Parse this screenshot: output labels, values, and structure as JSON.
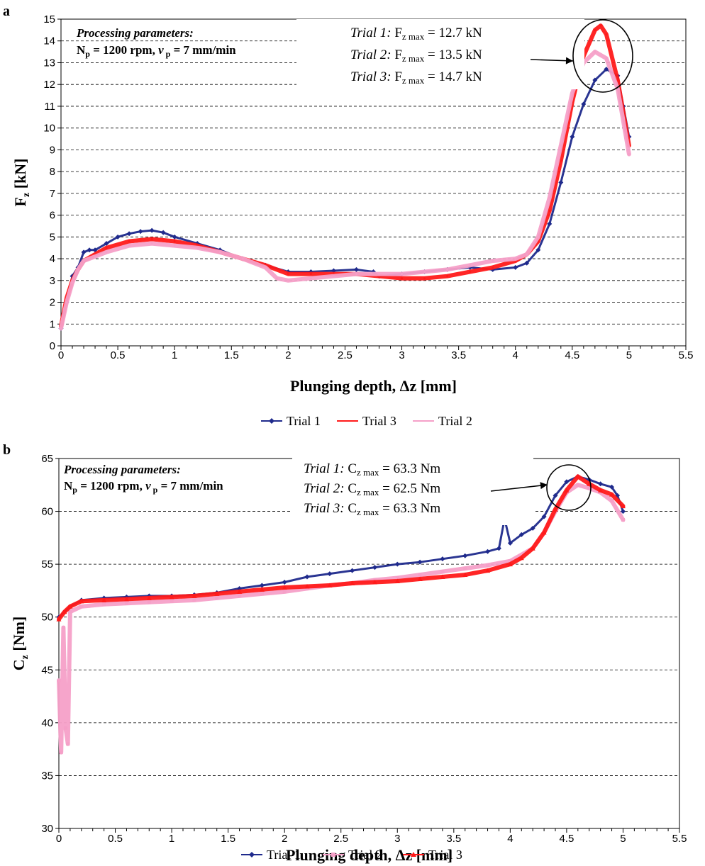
{
  "chart_data": [
    {
      "type": "line",
      "panel": "a",
      "xlabel": "Plunging depth, Δz [mm]",
      "ylabel": {
        "main": "F",
        "sub": "z",
        "unit": " [kN]"
      },
      "xlim": [
        0,
        5.5
      ],
      "ylim": [
        0,
        15
      ],
      "xticks": [
        "0",
        "0.5",
        "1",
        "1.5",
        "2",
        "2.5",
        "3",
        "3.5",
        "4",
        "4.5",
        "5",
        "5.5"
      ],
      "yticks": [
        "0",
        "1",
        "2",
        "3",
        "4",
        "5",
        "6",
        "7",
        "8",
        "9",
        "10",
        "11",
        "12",
        "13",
        "14",
        "15"
      ],
      "grid": "horizontal dashed",
      "params": {
        "heading": "Processing parameters:",
        "line2_a": "N",
        "line2_a_sub": "p",
        "line2_b": " = 1200 rpm, ",
        "line2_c": "v",
        "line2_c_sub": " p",
        "line2_d": " = 7 mm/min"
      },
      "annotations": [
        {
          "trial": "Trial 1:",
          "sym": "F",
          "sub": "z max",
          "value": " = 12.7 kN"
        },
        {
          "trial": "Trial 2:",
          "sym": "F",
          "sub": "z max",
          "value": " = 13.5 kN"
        },
        {
          "trial": "Trial 3:",
          "sym": "F",
          "sub": "z max",
          "value": " = 14.7 kN"
        }
      ],
      "legend_placement": "bottom",
      "legend": [
        "Trial 1",
        "Trial 3",
        "Trial 2"
      ],
      "series": [
        {
          "name": "Trial 1",
          "color": "#1f2a8c",
          "marker": "diamond",
          "x": [
            0,
            0.05,
            0.1,
            0.15,
            0.2,
            0.25,
            0.3,
            0.4,
            0.5,
            0.6,
            0.7,
            0.8,
            0.9,
            1.0,
            1.2,
            1.4,
            1.6,
            1.8,
            2.0,
            2.2,
            2.4,
            2.6,
            2.75,
            2.8,
            3.0,
            3.2,
            3.4,
            3.6,
            3.8,
            4.0,
            4.1,
            4.2,
            4.3,
            4.4,
            4.5,
            4.6,
            4.7,
            4.8,
            4.9,
            4.95,
            5.0
          ],
          "y": [
            0.8,
            2.0,
            3.2,
            3.6,
            4.3,
            4.4,
            4.4,
            4.7,
            5.0,
            5.15,
            5.25,
            5.3,
            5.2,
            5.0,
            4.7,
            4.4,
            4.0,
            3.7,
            3.4,
            3.4,
            3.45,
            3.5,
            3.4,
            3.2,
            3.3,
            3.4,
            3.5,
            3.6,
            3.5,
            3.6,
            3.8,
            4.4,
            5.6,
            7.5,
            9.6,
            11.1,
            12.2,
            12.7,
            12.4,
            11.0,
            9.6
          ]
        },
        {
          "name": "Trial 3",
          "color": "#ff1a1a",
          "marker": "none",
          "x": [
            0,
            0.05,
            0.1,
            0.15,
            0.2,
            0.3,
            0.4,
            0.6,
            0.8,
            1.0,
            1.2,
            1.4,
            1.6,
            1.8,
            2.0,
            2.2,
            2.4,
            2.6,
            2.8,
            3.0,
            3.2,
            3.4,
            3.6,
            3.8,
            4.0,
            4.1,
            4.2,
            4.3,
            4.4,
            4.5,
            4.6,
            4.7,
            4.75,
            4.8,
            4.9,
            5.0
          ],
          "y": [
            0.9,
            2.2,
            3.0,
            3.5,
            3.9,
            4.2,
            4.5,
            4.8,
            4.9,
            4.8,
            4.6,
            4.3,
            4.0,
            3.7,
            3.3,
            3.3,
            3.3,
            3.3,
            3.2,
            3.1,
            3.1,
            3.2,
            3.4,
            3.6,
            3.9,
            4.2,
            4.8,
            6.2,
            8.5,
            11.2,
            13.3,
            14.5,
            14.7,
            14.3,
            12.2,
            9.2
          ]
        },
        {
          "name": "Trial 2",
          "color": "#f5a0c8",
          "marker": "none",
          "x": [
            0,
            0.05,
            0.1,
            0.15,
            0.2,
            0.3,
            0.4,
            0.6,
            0.8,
            1.0,
            1.2,
            1.4,
            1.6,
            1.8,
            1.9,
            2.0,
            2.2,
            2.4,
            2.6,
            2.8,
            3.0,
            3.2,
            3.4,
            3.6,
            3.8,
            4.0,
            4.1,
            4.2,
            4.3,
            4.4,
            4.5,
            4.6,
            4.7,
            4.8,
            4.9,
            5.0
          ],
          "y": [
            0.8,
            2.0,
            2.9,
            3.5,
            3.9,
            4.1,
            4.3,
            4.6,
            4.7,
            4.6,
            4.5,
            4.3,
            4.0,
            3.6,
            3.1,
            3.0,
            3.1,
            3.2,
            3.3,
            3.3,
            3.3,
            3.4,
            3.5,
            3.7,
            3.9,
            4.0,
            4.2,
            5.0,
            6.8,
            9.2,
            11.6,
            13.0,
            13.5,
            13.2,
            11.8,
            8.8
          ]
        }
      ]
    },
    {
      "type": "line",
      "panel": "b",
      "xlabel": "Plunging depth, Δz [mm]",
      "ylabel": {
        "main": "C",
        "sub": "z",
        "unit": " [Nm]"
      },
      "xlim": [
        0,
        5.5
      ],
      "ylim": [
        30,
        65
      ],
      "xticks": [
        "0",
        "0.5",
        "1",
        "1.5",
        "2",
        "2.5",
        "3",
        "3.5",
        "4",
        "4.5",
        "5",
        "5.5"
      ],
      "yticks": [
        "30",
        "35",
        "40",
        "45",
        "50",
        "55",
        "60",
        "65"
      ],
      "grid": "horizontal dashed",
      "params": {
        "heading": "Processing parameters:",
        "line2_a": "N",
        "line2_a_sub": "p",
        "line2_b": " = 1200 rpm, ",
        "line2_c": "v",
        "line2_c_sub": " p",
        "line2_d": " = 7 mm/min"
      },
      "annotations": [
        {
          "trial": "Trial 1:",
          "sym": "C",
          "sub": "z max",
          "value": " = 63.3 Nm"
        },
        {
          "trial": "Trial 2:",
          "sym": "C",
          "sub": "z max",
          "value": " = 62.5 Nm"
        },
        {
          "trial": "Trial 3:",
          "sym": "C",
          "sub": "z max",
          "value": " = 63.3 Nm"
        }
      ],
      "legend_placement": "bottom",
      "legend": [
        "Trial 1",
        "Trial 2",
        "Trial 3"
      ],
      "series": [
        {
          "name": "Trial 1",
          "color": "#1f2a8c",
          "marker": "diamond",
          "x": [
            0,
            0.05,
            0.1,
            0.2,
            0.4,
            0.6,
            0.8,
            1.0,
            1.2,
            1.4,
            1.6,
            1.8,
            2.0,
            2.2,
            2.4,
            2.6,
            2.8,
            3.0,
            3.2,
            3.4,
            3.6,
            3.8,
            3.9,
            3.95,
            4.0,
            4.1,
            4.2,
            4.3,
            4.4,
            4.5,
            4.6,
            4.7,
            4.8,
            4.9,
            4.95,
            5.0
          ],
          "y": [
            50.0,
            50.5,
            51.0,
            51.6,
            51.8,
            51.9,
            52.0,
            52.0,
            52.1,
            52.3,
            52.7,
            53.0,
            53.3,
            53.8,
            54.1,
            54.4,
            54.7,
            55.0,
            55.2,
            55.5,
            55.8,
            56.2,
            56.5,
            59.3,
            57.0,
            57.8,
            58.4,
            59.5,
            61.5,
            62.8,
            63.3,
            63.0,
            62.6,
            62.3,
            61.5,
            60.0
          ]
        },
        {
          "name": "Trial 2",
          "color": "#f5a0c8",
          "marker": "square",
          "x": [
            0,
            0.02,
            0.04,
            0.06,
            0.08,
            0.1,
            0.2,
            0.4,
            0.6,
            0.8,
            1.0,
            1.2,
            1.4,
            1.6,
            1.8,
            2.0,
            2.2,
            2.4,
            2.6,
            2.8,
            3.0,
            3.2,
            3.4,
            3.6,
            3.8,
            4.0,
            4.2,
            4.3,
            4.4,
            4.5,
            4.6,
            4.7,
            4.8,
            4.9,
            5.0
          ],
          "y": [
            44.0,
            37.2,
            49.0,
            39.5,
            38.0,
            50.5,
            51.0,
            51.2,
            51.3,
            51.4,
            51.5,
            51.6,
            51.8,
            52.0,
            52.2,
            52.4,
            52.7,
            53.0,
            53.2,
            53.5,
            53.7,
            54.0,
            54.3,
            54.6,
            54.9,
            55.3,
            56.5,
            58.0,
            60.0,
            61.8,
            62.5,
            62.2,
            61.8,
            61.0,
            59.2
          ]
        },
        {
          "name": "Trial 3",
          "color": "#ff1a1a",
          "marker": "triangle",
          "x": [
            0,
            0.05,
            0.1,
            0.2,
            0.4,
            0.6,
            0.8,
            1.0,
            1.2,
            1.4,
            1.6,
            1.8,
            2.0,
            2.2,
            2.4,
            2.6,
            2.8,
            3.0,
            3.2,
            3.4,
            3.6,
            3.8,
            4.0,
            4.1,
            4.2,
            4.3,
            4.4,
            4.5,
            4.6,
            4.7,
            4.8,
            4.9,
            5.0
          ],
          "y": [
            49.8,
            50.5,
            51.0,
            51.5,
            51.6,
            51.7,
            51.8,
            51.9,
            52.0,
            52.2,
            52.4,
            52.6,
            52.8,
            52.9,
            53.0,
            53.2,
            53.3,
            53.4,
            53.6,
            53.8,
            54.0,
            54.4,
            55.0,
            55.6,
            56.5,
            58.0,
            60.2,
            62.0,
            63.3,
            62.6,
            62.0,
            61.6,
            60.5
          ]
        }
      ]
    }
  ]
}
